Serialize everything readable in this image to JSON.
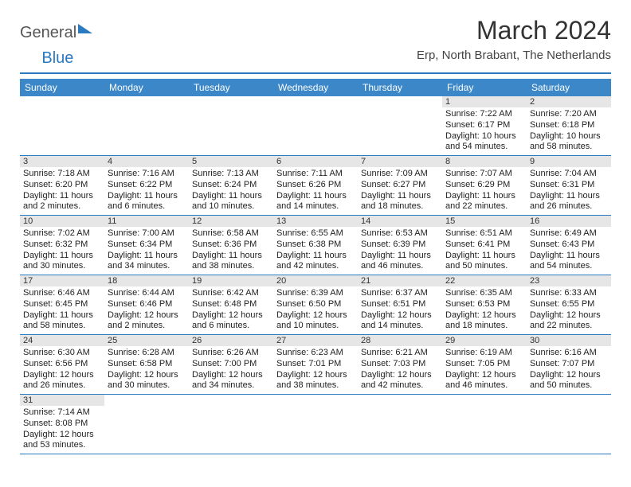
{
  "logo": {
    "text1": "General",
    "text2": "Blue"
  },
  "title": "March 2024",
  "location": "Erp, North Brabant, The Netherlands",
  "colors": {
    "header_bg": "#3b87c8",
    "accent": "#2a7ac0",
    "daynum_bg": "#e6e6e6",
    "text": "#222222",
    "page_bg": "#ffffff"
  },
  "typography": {
    "title_fontsize": 32,
    "location_fontsize": 15,
    "dayheader_fontsize": 12,
    "cell_fontsize": 11
  },
  "calendar": {
    "type": "table",
    "columns": [
      "Sunday",
      "Monday",
      "Tuesday",
      "Wednesday",
      "Thursday",
      "Friday",
      "Saturday"
    ],
    "weeks": [
      [
        null,
        null,
        null,
        null,
        null,
        {
          "day": "1",
          "sunrise": "Sunrise: 7:22 AM",
          "sunset": "Sunset: 6:17 PM",
          "daylight": "Daylight: 10 hours and 54 minutes."
        },
        {
          "day": "2",
          "sunrise": "Sunrise: 7:20 AM",
          "sunset": "Sunset: 6:18 PM",
          "daylight": "Daylight: 10 hours and 58 minutes."
        }
      ],
      [
        {
          "day": "3",
          "sunrise": "Sunrise: 7:18 AM",
          "sunset": "Sunset: 6:20 PM",
          "daylight": "Daylight: 11 hours and 2 minutes."
        },
        {
          "day": "4",
          "sunrise": "Sunrise: 7:16 AM",
          "sunset": "Sunset: 6:22 PM",
          "daylight": "Daylight: 11 hours and 6 minutes."
        },
        {
          "day": "5",
          "sunrise": "Sunrise: 7:13 AM",
          "sunset": "Sunset: 6:24 PM",
          "daylight": "Daylight: 11 hours and 10 minutes."
        },
        {
          "day": "6",
          "sunrise": "Sunrise: 7:11 AM",
          "sunset": "Sunset: 6:26 PM",
          "daylight": "Daylight: 11 hours and 14 minutes."
        },
        {
          "day": "7",
          "sunrise": "Sunrise: 7:09 AM",
          "sunset": "Sunset: 6:27 PM",
          "daylight": "Daylight: 11 hours and 18 minutes."
        },
        {
          "day": "8",
          "sunrise": "Sunrise: 7:07 AM",
          "sunset": "Sunset: 6:29 PM",
          "daylight": "Daylight: 11 hours and 22 minutes."
        },
        {
          "day": "9",
          "sunrise": "Sunrise: 7:04 AM",
          "sunset": "Sunset: 6:31 PM",
          "daylight": "Daylight: 11 hours and 26 minutes."
        }
      ],
      [
        {
          "day": "10",
          "sunrise": "Sunrise: 7:02 AM",
          "sunset": "Sunset: 6:32 PM",
          "daylight": "Daylight: 11 hours and 30 minutes."
        },
        {
          "day": "11",
          "sunrise": "Sunrise: 7:00 AM",
          "sunset": "Sunset: 6:34 PM",
          "daylight": "Daylight: 11 hours and 34 minutes."
        },
        {
          "day": "12",
          "sunrise": "Sunrise: 6:58 AM",
          "sunset": "Sunset: 6:36 PM",
          "daylight": "Daylight: 11 hours and 38 minutes."
        },
        {
          "day": "13",
          "sunrise": "Sunrise: 6:55 AM",
          "sunset": "Sunset: 6:38 PM",
          "daylight": "Daylight: 11 hours and 42 minutes."
        },
        {
          "day": "14",
          "sunrise": "Sunrise: 6:53 AM",
          "sunset": "Sunset: 6:39 PM",
          "daylight": "Daylight: 11 hours and 46 minutes."
        },
        {
          "day": "15",
          "sunrise": "Sunrise: 6:51 AM",
          "sunset": "Sunset: 6:41 PM",
          "daylight": "Daylight: 11 hours and 50 minutes."
        },
        {
          "day": "16",
          "sunrise": "Sunrise: 6:49 AM",
          "sunset": "Sunset: 6:43 PM",
          "daylight": "Daylight: 11 hours and 54 minutes."
        }
      ],
      [
        {
          "day": "17",
          "sunrise": "Sunrise: 6:46 AM",
          "sunset": "Sunset: 6:45 PM",
          "daylight": "Daylight: 11 hours and 58 minutes."
        },
        {
          "day": "18",
          "sunrise": "Sunrise: 6:44 AM",
          "sunset": "Sunset: 6:46 PM",
          "daylight": "Daylight: 12 hours and 2 minutes."
        },
        {
          "day": "19",
          "sunrise": "Sunrise: 6:42 AM",
          "sunset": "Sunset: 6:48 PM",
          "daylight": "Daylight: 12 hours and 6 minutes."
        },
        {
          "day": "20",
          "sunrise": "Sunrise: 6:39 AM",
          "sunset": "Sunset: 6:50 PM",
          "daylight": "Daylight: 12 hours and 10 minutes."
        },
        {
          "day": "21",
          "sunrise": "Sunrise: 6:37 AM",
          "sunset": "Sunset: 6:51 PM",
          "daylight": "Daylight: 12 hours and 14 minutes."
        },
        {
          "day": "22",
          "sunrise": "Sunrise: 6:35 AM",
          "sunset": "Sunset: 6:53 PM",
          "daylight": "Daylight: 12 hours and 18 minutes."
        },
        {
          "day": "23",
          "sunrise": "Sunrise: 6:33 AM",
          "sunset": "Sunset: 6:55 PM",
          "daylight": "Daylight: 12 hours and 22 minutes."
        }
      ],
      [
        {
          "day": "24",
          "sunrise": "Sunrise: 6:30 AM",
          "sunset": "Sunset: 6:56 PM",
          "daylight": "Daylight: 12 hours and 26 minutes."
        },
        {
          "day": "25",
          "sunrise": "Sunrise: 6:28 AM",
          "sunset": "Sunset: 6:58 PM",
          "daylight": "Daylight: 12 hours and 30 minutes."
        },
        {
          "day": "26",
          "sunrise": "Sunrise: 6:26 AM",
          "sunset": "Sunset: 7:00 PM",
          "daylight": "Daylight: 12 hours and 34 minutes."
        },
        {
          "day": "27",
          "sunrise": "Sunrise: 6:23 AM",
          "sunset": "Sunset: 7:01 PM",
          "daylight": "Daylight: 12 hours and 38 minutes."
        },
        {
          "day": "28",
          "sunrise": "Sunrise: 6:21 AM",
          "sunset": "Sunset: 7:03 PM",
          "daylight": "Daylight: 12 hours and 42 minutes."
        },
        {
          "day": "29",
          "sunrise": "Sunrise: 6:19 AM",
          "sunset": "Sunset: 7:05 PM",
          "daylight": "Daylight: 12 hours and 46 minutes."
        },
        {
          "day": "30",
          "sunrise": "Sunrise: 6:16 AM",
          "sunset": "Sunset: 7:07 PM",
          "daylight": "Daylight: 12 hours and 50 minutes."
        }
      ],
      [
        {
          "day": "31",
          "sunrise": "Sunrise: 7:14 AM",
          "sunset": "Sunset: 8:08 PM",
          "daylight": "Daylight: 12 hours and 53 minutes."
        },
        null,
        null,
        null,
        null,
        null,
        null
      ]
    ]
  }
}
